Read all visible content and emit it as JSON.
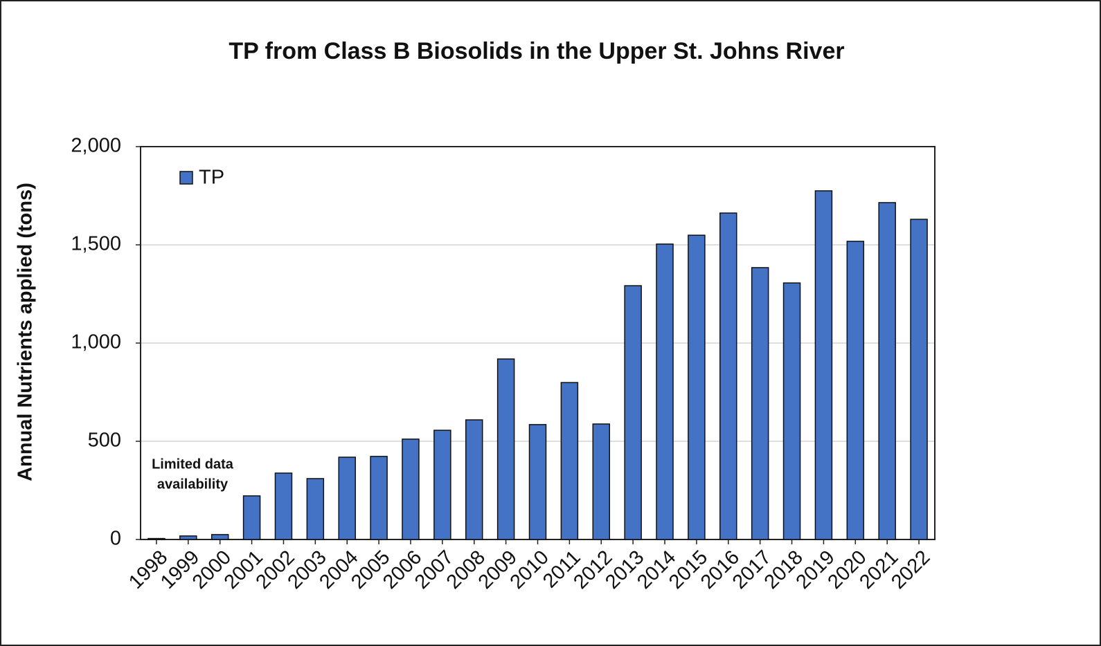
{
  "chart_data": {
    "type": "bar",
    "title": "TP from Class B Biosolids in the Upper St. Johns River",
    "y_label": "Annual Nutrients applied (tons)",
    "annotation": [
      "Limited data",
      "availability"
    ],
    "categories": [
      "1998",
      "1999",
      "2000",
      "2001",
      "2002",
      "2003",
      "2004",
      "2005",
      "2006",
      "2007",
      "2008",
      "2009",
      "2010",
      "2011",
      "2012",
      "2013",
      "2014",
      "2015",
      "2016",
      "2017",
      "2018",
      "2019",
      "2020",
      "2021",
      "2022"
    ],
    "series": [
      {
        "name": "TP",
        "color": "#4472c4",
        "values": [
          5,
          18,
          25,
          222,
          338,
          310,
          419,
          423,
          511,
          556,
          609,
          919,
          585,
          799,
          588,
          1292,
          1504,
          1549,
          1662,
          1384,
          1306,
          1775,
          1518,
          1715,
          1630
        ]
      }
    ],
    "ylim": [
      0,
      2000
    ],
    "yticks": [
      0,
      500,
      {
        "value": 1000,
        "label": "1,000"
      },
      {
        "value": 1500,
        "label": "1,500"
      },
      {
        "value": 2000,
        "label": "2,000"
      }
    ],
    "grid": true,
    "legend": "top-left"
  }
}
